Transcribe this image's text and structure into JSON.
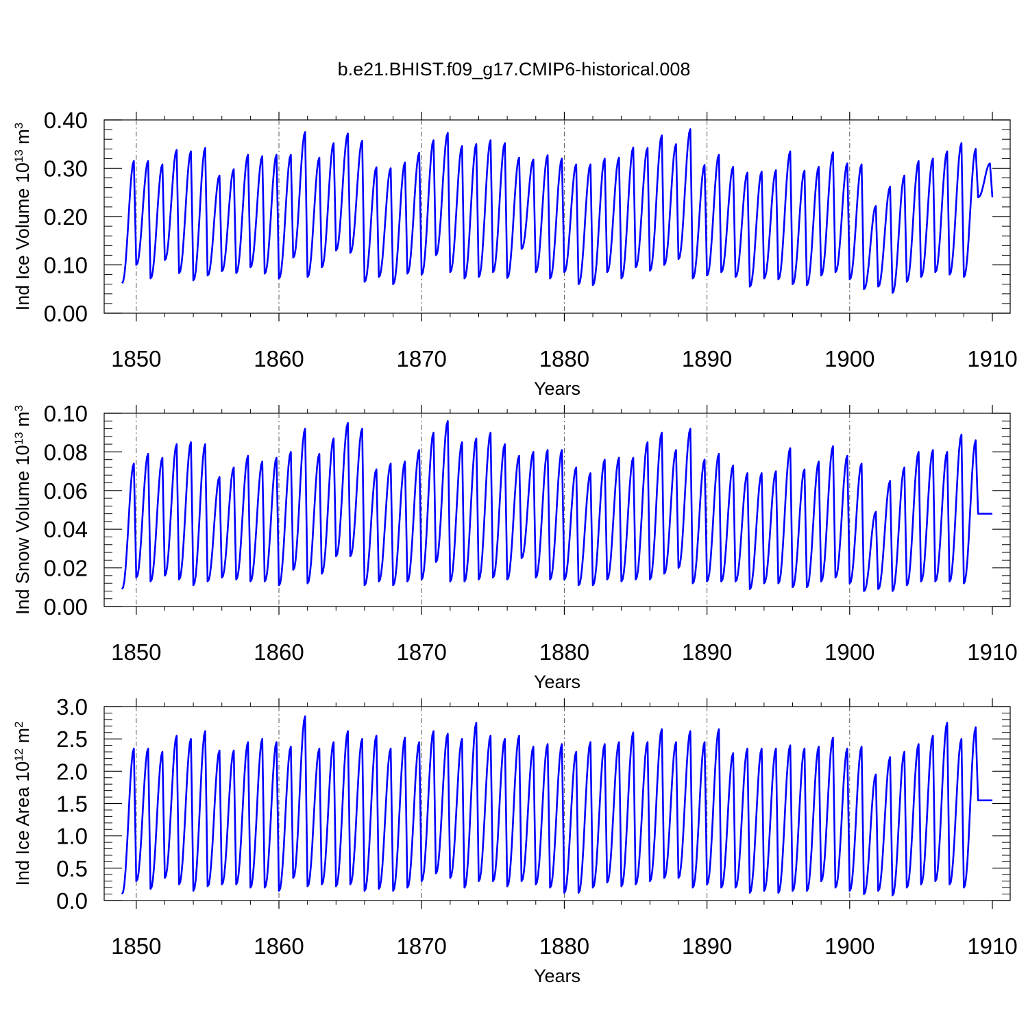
{
  "figure": {
    "title": "b.e21.BHIST.f09_g17.CMIP6-historical.008"
  },
  "colors": {
    "series": "#0000ff",
    "axes": "#000000",
    "reference_lines": "#555555"
  },
  "chart_data": [
    {
      "type": "line",
      "id": "ice-volume",
      "title": "",
      "xlabel": "Years",
      "ylabel": "Ind Ice Volume",
      "ylabel_exp_base": "10",
      "ylabel_exp": "13",
      "ylabel_unit": "m",
      "ylabel_unit_exp": "3",
      "xlim": [
        1849,
        1910
      ],
      "ylim": [
        0,
        0.4
      ],
      "xticks": [
        1850,
        1860,
        1870,
        1880,
        1890,
        1900,
        1910
      ],
      "xtick_labels": [
        "1850",
        "1860",
        "1870",
        "1880",
        "1890",
        "1900",
        "1910"
      ],
      "yticks": [
        0,
        0.1,
        0.2,
        0.3,
        0.4
      ],
      "ytick_labels": [
        "0.00",
        "0.10",
        "0.20",
        "0.30",
        "0.40"
      ],
      "reference_x": [
        1850,
        1860,
        1870,
        1880,
        1890,
        1900
      ],
      "series": [
        {
          "name": "Ind Ice Volume",
          "annual_max": [
            0.315,
            0.315,
            0.308,
            0.338,
            0.335,
            0.342,
            0.285,
            0.298,
            0.328,
            0.325,
            0.328,
            0.328,
            0.375,
            0.322,
            0.352,
            0.372,
            0.357,
            0.302,
            0.3,
            0.312,
            0.332,
            0.358,
            0.373,
            0.346,
            0.35,
            0.358,
            0.352,
            0.322,
            0.318,
            0.327,
            0.32,
            0.308,
            0.308,
            0.32,
            0.322,
            0.343,
            0.342,
            0.368,
            0.35,
            0.381,
            0.307,
            0.328,
            0.303,
            0.291,
            0.293,
            0.296,
            0.335,
            0.295,
            0.303,
            0.333,
            0.31,
            0.308,
            0.222,
            0.262,
            0.285,
            0.315,
            0.32,
            0.335,
            0.352,
            0.34,
            0.31
          ],
          "annual_min": [
            0.062,
            0.1,
            0.072,
            0.11,
            0.083,
            0.068,
            0.078,
            0.087,
            0.083,
            0.095,
            0.082,
            0.072,
            0.115,
            0.075,
            0.095,
            0.13,
            0.125,
            0.065,
            0.075,
            0.06,
            0.082,
            0.08,
            0.12,
            0.085,
            0.072,
            0.075,
            0.085,
            0.073,
            0.133,
            0.085,
            0.072,
            0.085,
            0.06,
            0.058,
            0.085,
            0.072,
            0.095,
            0.088,
            0.1,
            0.112,
            0.072,
            0.078,
            0.085,
            0.075,
            0.055,
            0.072,
            0.07,
            0.06,
            0.058,
            0.078,
            0.085,
            0.07,
            0.05,
            0.055,
            0.042,
            0.065,
            0.075,
            0.085,
            0.08,
            0.075,
            0.24
          ]
        }
      ]
    },
    {
      "type": "line",
      "id": "snow-volume",
      "title": "",
      "xlabel": "Years",
      "ylabel": "Ind Snow Volume",
      "ylabel_exp_base": "10",
      "ylabel_exp": "13",
      "ylabel_unit": "m",
      "ylabel_unit_exp": "3",
      "xlim": [
        1849,
        1910
      ],
      "ylim": [
        0,
        0.1
      ],
      "xticks": [
        1850,
        1860,
        1870,
        1880,
        1890,
        1900,
        1910
      ],
      "xtick_labels": [
        "1850",
        "1860",
        "1870",
        "1880",
        "1890",
        "1900",
        "1910"
      ],
      "yticks": [
        0,
        0.02,
        0.04,
        0.06,
        0.08,
        0.1
      ],
      "ytick_labels": [
        "0.00",
        "0.02",
        "0.04",
        "0.06",
        "0.08",
        "0.10"
      ],
      "reference_x": [
        1850,
        1860,
        1870,
        1880,
        1890,
        1900
      ],
      "series": [
        {
          "name": "Ind Snow Volume",
          "annual_max": [
            0.074,
            0.079,
            0.077,
            0.084,
            0.085,
            0.084,
            0.067,
            0.072,
            0.078,
            0.075,
            0.077,
            0.08,
            0.092,
            0.079,
            0.087,
            0.095,
            0.092,
            0.071,
            0.074,
            0.075,
            0.081,
            0.09,
            0.096,
            0.085,
            0.087,
            0.09,
            0.084,
            0.078,
            0.08,
            0.081,
            0.081,
            0.072,
            0.069,
            0.076,
            0.077,
            0.077,
            0.085,
            0.09,
            0.081,
            0.092,
            0.076,
            0.079,
            0.073,
            0.069,
            0.069,
            0.07,
            0.082,
            0.071,
            0.075,
            0.083,
            0.078,
            0.074,
            0.049,
            0.065,
            0.072,
            0.08,
            0.081,
            0.08,
            0.089,
            0.086,
            0.048
          ],
          "annual_min": [
            0.009,
            0.015,
            0.013,
            0.016,
            0.014,
            0.011,
            0.013,
            0.015,
            0.014,
            0.013,
            0.013,
            0.011,
            0.019,
            0.012,
            0.017,
            0.026,
            0.026,
            0.011,
            0.013,
            0.011,
            0.013,
            0.014,
            0.023,
            0.013,
            0.013,
            0.014,
            0.015,
            0.014,
            0.025,
            0.015,
            0.014,
            0.014,
            0.011,
            0.011,
            0.014,
            0.013,
            0.014,
            0.014,
            0.017,
            0.02,
            0.012,
            0.013,
            0.013,
            0.013,
            0.009,
            0.012,
            0.012,
            0.01,
            0.01,
            0.013,
            0.015,
            0.012,
            0.008,
            0.009,
            0.008,
            0.011,
            0.013,
            0.013,
            0.013,
            0.012,
            0.048
          ]
        }
      ]
    },
    {
      "type": "line",
      "id": "ice-area",
      "title": "",
      "xlabel": "Years",
      "ylabel": "Ind Ice Area",
      "ylabel_exp_base": "10",
      "ylabel_exp": "12",
      "ylabel_unit": "m",
      "ylabel_unit_exp": "2",
      "xlim": [
        1849,
        1910
      ],
      "ylim": [
        0,
        3.0
      ],
      "xticks": [
        1850,
        1860,
        1870,
        1880,
        1890,
        1900,
        1910
      ],
      "xtick_labels": [
        "1850",
        "1860",
        "1870",
        "1880",
        "1890",
        "1900",
        "1910"
      ],
      "yticks": [
        0,
        0.5,
        1.0,
        1.5,
        2.0,
        2.5,
        3.0
      ],
      "ytick_labels": [
        "0.0",
        "0.5",
        "1.0",
        "1.5",
        "2.0",
        "2.5",
        "3.0"
      ],
      "reference_x": [
        1850,
        1860,
        1870,
        1880,
        1890,
        1900
      ],
      "series": [
        {
          "name": "Ind Ice Area",
          "annual_max": [
            2.35,
            2.35,
            2.3,
            2.55,
            2.5,
            2.62,
            2.32,
            2.32,
            2.45,
            2.5,
            2.45,
            2.38,
            2.85,
            2.35,
            2.45,
            2.62,
            2.5,
            2.55,
            2.35,
            2.52,
            2.45,
            2.62,
            2.58,
            2.5,
            2.75,
            2.55,
            2.5,
            2.55,
            2.38,
            2.42,
            2.42,
            2.3,
            2.45,
            2.42,
            2.45,
            2.6,
            2.45,
            2.65,
            2.45,
            2.62,
            2.45,
            2.65,
            2.28,
            2.35,
            2.35,
            2.35,
            2.4,
            2.35,
            2.38,
            2.52,
            2.35,
            2.38,
            1.95,
            2.22,
            2.3,
            2.42,
            2.55,
            2.75,
            2.5,
            2.68,
            1.55
          ],
          "annual_min": [
            0.1,
            0.3,
            0.18,
            0.35,
            0.25,
            0.15,
            0.22,
            0.25,
            0.25,
            0.2,
            0.2,
            0.15,
            0.35,
            0.22,
            0.25,
            0.22,
            0.25,
            0.15,
            0.18,
            0.15,
            0.2,
            0.3,
            0.42,
            0.35,
            0.2,
            0.3,
            0.3,
            0.22,
            0.3,
            0.25,
            0.2,
            0.12,
            0.12,
            0.2,
            0.28,
            0.22,
            0.25,
            0.3,
            0.35,
            0.35,
            0.2,
            0.25,
            0.2,
            0.2,
            0.12,
            0.15,
            0.12,
            0.15,
            0.15,
            0.3,
            0.2,
            0.15,
            0.1,
            0.15,
            0.08,
            0.2,
            0.25,
            0.3,
            0.25,
            0.2,
            1.55
          ]
        }
      ]
    }
  ]
}
